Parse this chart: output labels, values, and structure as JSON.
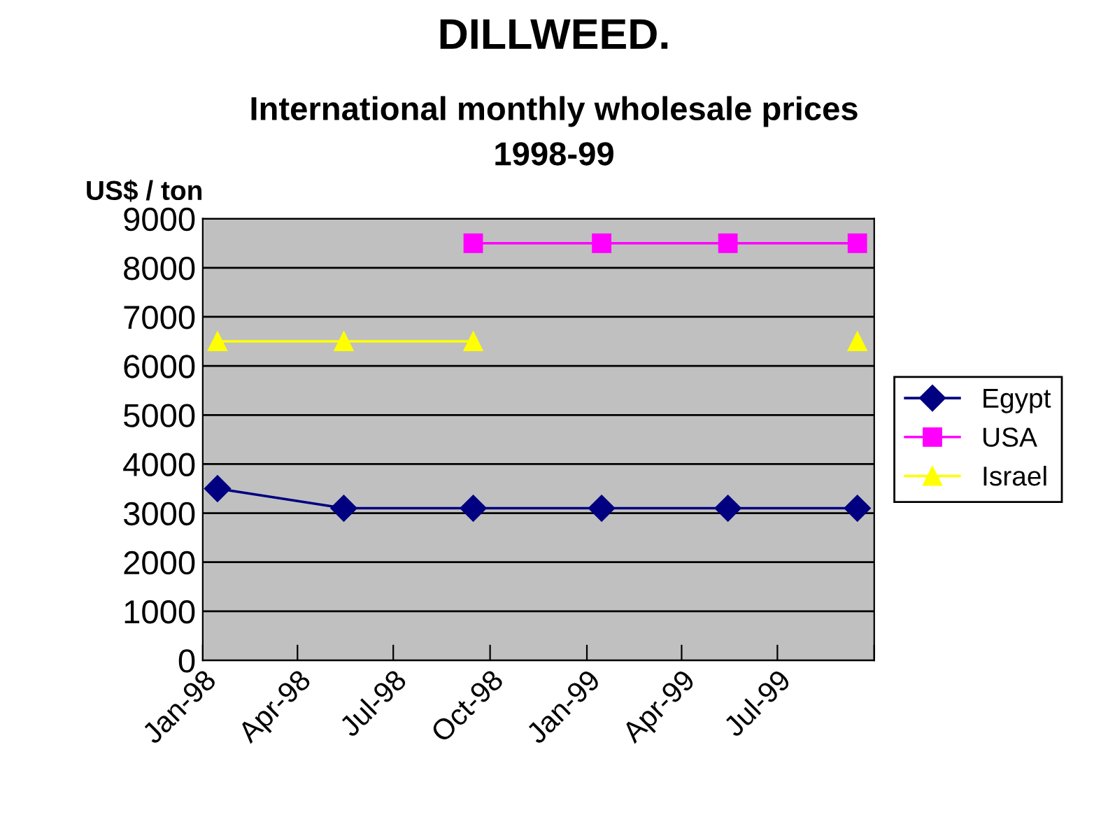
{
  "chart_data": {
    "type": "line",
    "title": "DILLWEED.",
    "subtitle": "International monthly wholesale prices\n1998-99",
    "ylabel": "US$ / ton",
    "x": [
      "1998-01-15",
      "1998-05-15",
      "1998-09-15",
      "1999-01-15",
      "1999-05-15",
      "1999-09-15"
    ],
    "series": [
      {
        "name": "Egypt",
        "color": "#000080",
        "marker": "diamond",
        "values": [
          3500,
          3100,
          3100,
          3100,
          3100,
          3100
        ]
      },
      {
        "name": "USA",
        "color": "#ff00ff",
        "marker": "square",
        "values": [
          null,
          null,
          8500,
          8500,
          8500,
          8500
        ]
      },
      {
        "name": "Israel",
        "color": "#ffff00",
        "marker": "triangle",
        "values": [
          6500,
          6500,
          6500,
          null,
          null,
          6500
        ]
      }
    ],
    "xlim": [
      "1998-01-01",
      "1999-10-01"
    ],
    "xticks": [
      {
        "value": "1998-01-01",
        "label": "Jan-98"
      },
      {
        "value": "1998-04-01",
        "label": "Apr-98"
      },
      {
        "value": "1998-07-01",
        "label": "Jul-98"
      },
      {
        "value": "1998-10-01",
        "label": "Oct-98"
      },
      {
        "value": "1999-01-01",
        "label": "Jan-99"
      },
      {
        "value": "1999-04-01",
        "label": "Apr-99"
      },
      {
        "value": "1999-07-01",
        "label": "Jul-99"
      },
      {
        "value": "1999-10-01",
        "label": null
      }
    ],
    "ylim": [
      0,
      9000
    ],
    "yticks": [
      0,
      1000,
      2000,
      3000,
      4000,
      5000,
      6000,
      7000,
      8000,
      9000
    ],
    "grid": "y",
    "legend": "right",
    "line_style": "solid"
  }
}
